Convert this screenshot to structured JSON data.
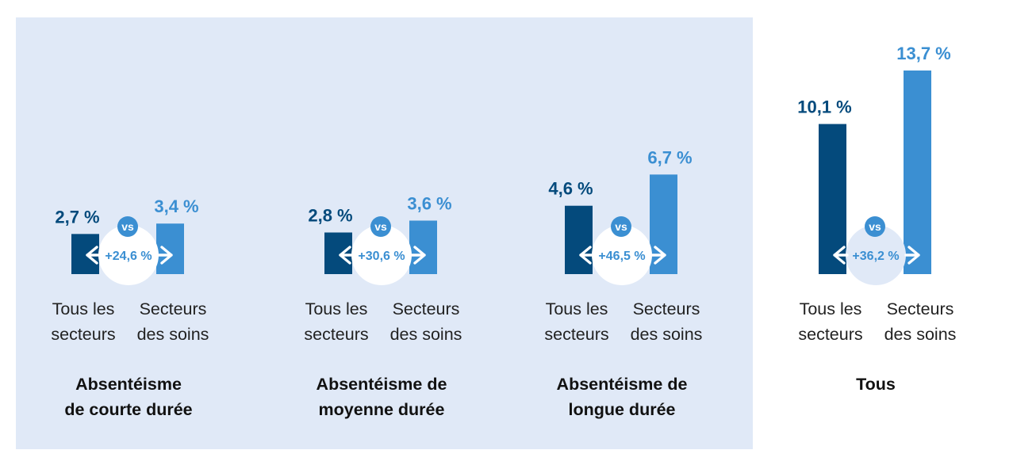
{
  "colors": {
    "tous_les_secteurs": "#044a7c",
    "secteurs_des_soins": "#3b8fd2",
    "panel_background": "#e0e9f7"
  },
  "chart_data": {
    "type": "bar",
    "y_unit": "%",
    "categories": [
      "Tous les secteurs",
      "Secteurs des soins"
    ],
    "groups": [
      {
        "title_lines": [
          "Absentéisme",
          "de courte durée"
        ],
        "values": [
          2.7,
          3.4
        ],
        "value_labels": [
          "2,7 %",
          "3,4 %"
        ],
        "difference_label": "+24,6 %"
      },
      {
        "title_lines": [
          "Absentéisme de",
          "moyenne durée"
        ],
        "values": [
          2.8,
          3.6
        ],
        "value_labels": [
          "2,8 %",
          "3,6 %"
        ],
        "difference_label": "+30,6 %"
      },
      {
        "title_lines": [
          "Absentéisme de",
          "longue durée"
        ],
        "values": [
          4.6,
          6.7
        ],
        "value_labels": [
          "4,6 %",
          "6,7 %"
        ],
        "difference_label": "+46,5 %"
      },
      {
        "title_lines": [
          "Tous"
        ],
        "values": [
          10.1,
          13.7
        ],
        "value_labels": [
          "10,1 %",
          "13,7 %"
        ],
        "difference_label": "+36,2 %"
      }
    ],
    "category_label_lines": [
      [
        "Tous les",
        "secteurs"
      ],
      [
        "Secteurs",
        "des soins"
      ]
    ],
    "vs_label": "vs",
    "ylim": [
      0,
      13.7
    ],
    "highlighted_panel_groups": 3
  }
}
